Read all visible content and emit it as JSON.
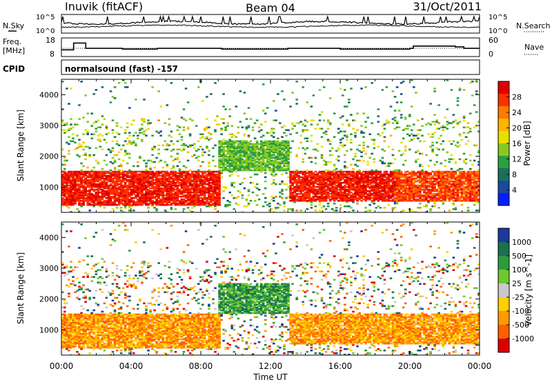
{
  "header": {
    "station": "Inuvik (fitACF)",
    "beam": "Beam 04",
    "date": "31/Oct/2011"
  },
  "noise_panel": {
    "left_label": "N.Sky",
    "right_label": "N.Search",
    "left_ticks": [
      "10^5",
      "10^0"
    ],
    "right_ticks": [
      "10^5",
      "10^0"
    ]
  },
  "freq_panel": {
    "left_label_1": "Freq.",
    "left_label_2": "[MHz]",
    "right_label": "Nave",
    "left_ticks": [
      "18",
      "8"
    ],
    "right_ticks": [
      "60",
      "0"
    ]
  },
  "cpid": {
    "label": "CPID",
    "value": "normalsound (fast) -157"
  },
  "power_panel": {
    "ylabel": "Slant Range [km]",
    "colorbar_label": "Power [dB]",
    "colorbar_ticks": [
      "28",
      "24",
      "20",
      "16",
      "12",
      "8",
      "4"
    ],
    "colorbar_colors": [
      "#e00000",
      "#ff3000",
      "#ff7a00",
      "#ffb400",
      "#e8e000",
      "#88c820",
      "#2aa040",
      "#1a7060",
      "#1a4aa0",
      "#0020ff"
    ]
  },
  "velocity_panel": {
    "ylabel": "Slant Range [km]",
    "colorbar_label": "Velocity [m s^-1]",
    "colorbar_ticks": [
      "1000",
      "500",
      "100",
      "25",
      "-25",
      "-100",
      "-500",
      "-1000"
    ],
    "colorbar_colors": [
      "#1a3aa0",
      "#1a7050",
      "#2e9a40",
      "#70c830",
      "#c8c8c8",
      "#ffd000",
      "#ff9a00",
      "#ff6000",
      "#e00000"
    ]
  },
  "xaxis": {
    "label": "Time UT",
    "ticks": [
      "00:00",
      "04:00",
      "08:00",
      "12:00",
      "16:00",
      "20:00",
      "00:00"
    ]
  },
  "chart_data": {
    "type": "heatmap",
    "xlabel": "Time UT",
    "ylabel": "Slant Range [km]",
    "xlim_hours": [
      0,
      24
    ],
    "ylim_km": [
      180,
      4500
    ],
    "y_ticks": [
      1000,
      2000,
      3000,
      4000
    ],
    "power_db_range": [
      0,
      30
    ],
    "velocity_ms_levels": [
      1000,
      500,
      100,
      25,
      -25,
      -100,
      -500,
      -1000
    ],
    "frequency_mhz_range": [
      8,
      18
    ],
    "nave_range": [
      0,
      60
    ],
    "echo_regions": [
      {
        "t_start": 0.0,
        "t_end": 9.0,
        "r_min_km": 400,
        "r_max_km": 1500,
        "power_db": 28,
        "velocity": "-100 to -500"
      },
      {
        "t_start": 9.0,
        "t_end": 13.0,
        "r_min_km": 1500,
        "r_max_km": 2500,
        "power_db": 12,
        "velocity": "25 to 500"
      },
      {
        "t_start": 13.0,
        "t_end": 19.0,
        "r_min_km": 500,
        "r_max_km": 1500,
        "power_db": 28,
        "velocity": "-25 to -500"
      },
      {
        "t_start": 19.0,
        "t_end": 24.0,
        "r_min_km": 500,
        "r_max_km": 1500,
        "power_db": 26,
        "velocity": "-100 to -500"
      }
    ]
  }
}
